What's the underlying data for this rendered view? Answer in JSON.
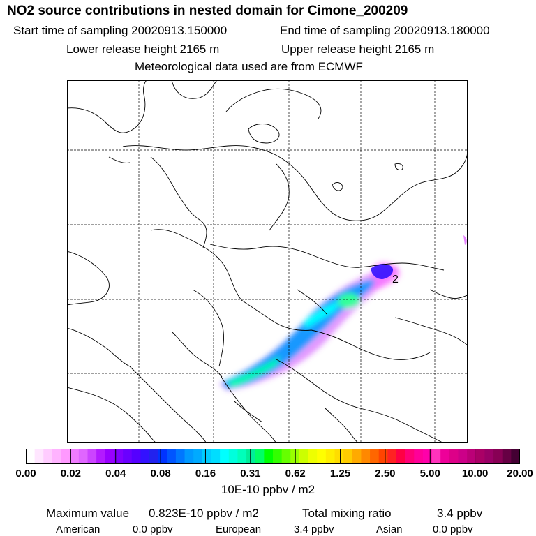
{
  "header": {
    "title": "NO2 source contributions in nested domain for Cimone_200209",
    "start_time": "Start time of sampling 20020913.150000",
    "end_time": "End time of sampling 20020913.180000",
    "lower_height": "Lower release height 2165 m",
    "upper_height": "Upper release height 2165 m",
    "met_source": "Meteorological data used are from ECMWF"
  },
  "map": {
    "plume_label": "2",
    "colors": {
      "land_outline": "#000000",
      "grid": "#000000",
      "background": "#ffffff"
    }
  },
  "colorbar": {
    "tick_labels": [
      "0.00",
      "0.02",
      "0.04",
      "0.08",
      "0.16",
      "0.31",
      "0.62",
      "1.25",
      "2.50",
      "5.00",
      "10.00",
      "20.00"
    ],
    "unit": "10E-10 ppbv / m2",
    "colors": [
      "#ffffff",
      "#ffe6ff",
      "#ffccff",
      "#ffb3ff",
      "#ff99ff",
      "#f07cff",
      "#e066ff",
      "#cc44ff",
      "#b31aff",
      "#9900ff",
      "#8000ff",
      "#6a00ff",
      "#5500ff",
      "#3311ff",
      "#2222ee",
      "#0033ff",
      "#0055ff",
      "#0077ff",
      "#0099ff",
      "#00aaff",
      "#00ccff",
      "#00ddff",
      "#00ffff",
      "#00ffdd",
      "#00ffbb",
      "#00ee99",
      "#00ff66",
      "#00ff00",
      "#33ff00",
      "#66ff00",
      "#99ff00",
      "#ccff00",
      "#eeff00",
      "#ffff00",
      "#ffee00",
      "#ffdd00",
      "#ffcc00",
      "#ffaa00",
      "#ff8800",
      "#ff6600",
      "#ff4400",
      "#ff2222",
      "#ff0044",
      "#ff0077",
      "#ff0099",
      "#ff00aa",
      "#ff33bb",
      "#ee0099",
      "#dd0088",
      "#cc0088",
      "#bb0077",
      "#aa0066",
      "#990066",
      "#880055",
      "#660044",
      "#440033"
    ]
  },
  "stats": {
    "max_label": "Maximum value",
    "max_value": "0.823E-10 ppbv / m2",
    "total_label": "Total mixing ratio",
    "total_value": "3.4 ppbv",
    "regions": [
      {
        "name": "American",
        "value": "0.0 ppbv"
      },
      {
        "name": "European",
        "value": "3.4 ppbv"
      },
      {
        "name": "Asian",
        "value": "0.0 ppbv"
      }
    ]
  }
}
